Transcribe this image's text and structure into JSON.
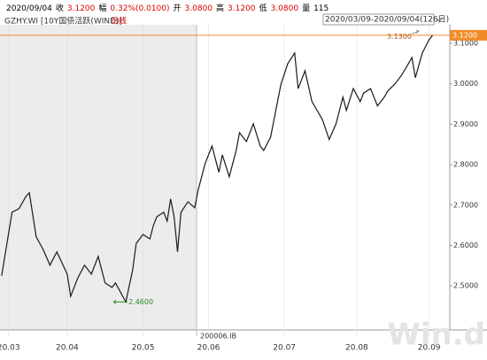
{
  "header": {
    "date": "2020/09/04",
    "items": [
      {
        "label": "收",
        "value": "3.1200"
      },
      {
        "label": "幅",
        "value": "0.32%(0.0100)"
      },
      {
        "label": "开",
        "value": "3.0800"
      },
      {
        "label": "高",
        "value": "3.1200"
      },
      {
        "label": "低",
        "value": "3.0800"
      },
      {
        "label": "量",
        "value": "115"
      }
    ],
    "instrument": "GZHY.WI [10Y国债活跃(WIND)]",
    "period": "日线",
    "range": "2020/03/09-2020/09/04(126日)"
  },
  "chart_data": {
    "type": "line",
    "color": "#1a1a1a",
    "x": [
      0,
      3,
      5,
      7,
      8,
      10,
      12,
      14,
      16,
      19,
      20,
      22,
      24,
      26,
      28,
      30,
      32,
      33,
      36,
      38,
      39,
      41,
      43,
      44,
      45,
      47,
      48,
      49,
      50,
      51,
      52,
      54,
      56,
      57,
      59,
      61,
      63,
      64,
      66,
      68,
      69,
      71,
      73,
      75,
      76,
      78,
      81,
      83,
      85,
      86,
      88,
      90,
      93,
      95,
      97,
      99,
      100,
      102,
      104,
      105,
      107,
      109,
      111,
      112,
      114,
      116,
      118,
      119,
      120,
      122,
      124,
      125
    ],
    "values": [
      2.525,
      2.682,
      2.691,
      2.721,
      2.73,
      2.621,
      2.59,
      2.551,
      2.584,
      2.529,
      2.474,
      2.518,
      2.551,
      2.529,
      2.573,
      2.507,
      2.496,
      2.507,
      2.46,
      2.54,
      2.605,
      2.627,
      2.616,
      2.649,
      2.671,
      2.682,
      2.66,
      2.715,
      2.671,
      2.584,
      2.682,
      2.708,
      2.693,
      2.737,
      2.802,
      2.846,
      2.781,
      2.824,
      2.77,
      2.835,
      2.879,
      2.857,
      2.901,
      2.846,
      2.835,
      2.868,
      2.999,
      3.05,
      3.076,
      2.988,
      3.032,
      2.956,
      2.912,
      2.862,
      2.901,
      2.967,
      2.934,
      2.988,
      2.956,
      2.977,
      2.988,
      2.945,
      2.967,
      2.982,
      2.999,
      3.021,
      3.05,
      3.065,
      3.015,
      3.076,
      3.109,
      3.12
    ],
    "xlim": [
      -0.5,
      130
    ],
    "xticks": [
      {
        "value": 2,
        "label": "20.03"
      },
      {
        "value": 19,
        "label": "20.04"
      },
      {
        "value": 41,
        "label": "20.05"
      },
      {
        "value": 60,
        "label": "20.06"
      },
      {
        "value": 82,
        "label": "20.07"
      },
      {
        "value": 103,
        "label": "20.08"
      },
      {
        "value": 124,
        "label": "20.09"
      }
    ],
    "ylim": [
      2.393,
      3.146
    ],
    "yticks": [
      {
        "value": 2.5,
        "label": "2.5000"
      },
      {
        "value": 2.6,
        "label": "2.6000"
      },
      {
        "value": 2.7,
        "label": "2.7000"
      },
      {
        "value": 2.8,
        "label": "2.8000"
      },
      {
        "value": 2.9,
        "label": "2.9000"
      },
      {
        "value": 3.0,
        "label": "3.0000"
      },
      {
        "value": 3.1,
        "label": "3.1000"
      }
    ],
    "price_line": {
      "value": 3.12,
      "label": "3.1200",
      "color": "#f08c28"
    },
    "annotations": [
      {
        "x": 121,
        "value": 3.13,
        "label": "3.1300"
      },
      {
        "x": 36,
        "value": 2.46,
        "label": "2.4600"
      }
    ],
    "contract_label": "200006.IB",
    "watermark": "Win.d"
  }
}
